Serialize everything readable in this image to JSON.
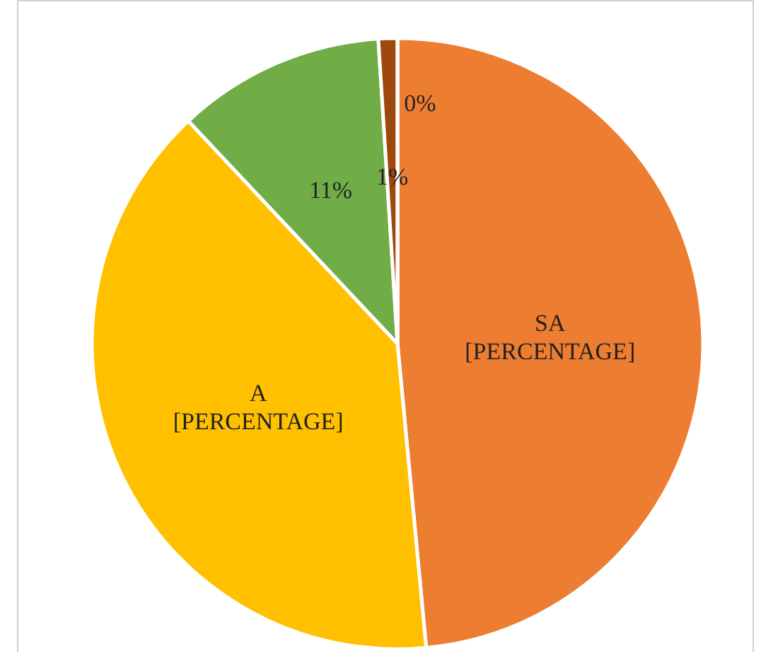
{
  "chart_data": {
    "type": "pie",
    "categories": [
      "SA",
      "A",
      null,
      null,
      null
    ],
    "values": [
      48.5,
      39.5,
      11,
      1,
      0
    ],
    "colors": [
      "#ed7d31",
      "#ffc000",
      "#70ad47",
      "#9e480e",
      "#5b9bd5"
    ],
    "value_labels": [
      "[PERCENTAGE]",
      "[PERCENTAGE]",
      "11%",
      "1%",
      "0%"
    ],
    "legend": false
  }
}
